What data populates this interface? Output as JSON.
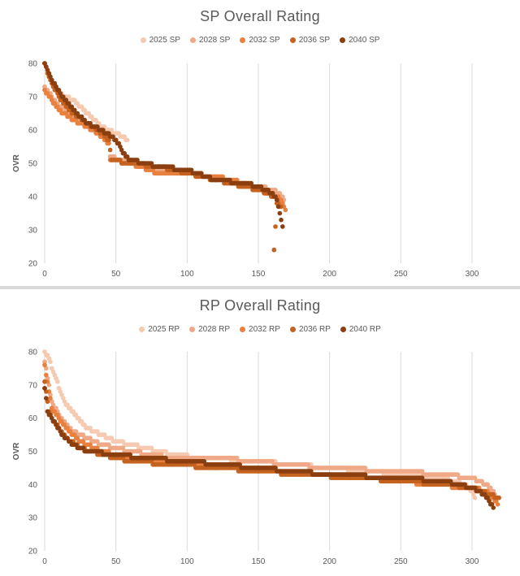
{
  "chart_data": [
    {
      "type": "scatter",
      "title": "SP Overall Rating",
      "xlabel": "",
      "ylabel": "OVR",
      "xlim": [
        0,
        320
      ],
      "ylim": [
        20,
        80
      ],
      "xticks": [
        "0",
        "50",
        "100",
        "150",
        "200",
        "250",
        "300"
      ],
      "yticks": [
        "20",
        "30",
        "40",
        "50",
        "60",
        "70",
        "80"
      ],
      "legend_position": "top",
      "grid": "vertical",
      "series": [
        {
          "name": "2025 SP",
          "color": "#f6c9b1",
          "n": 58,
          "points": [
            [
              0,
              80
            ],
            [
              5,
              74
            ],
            [
              10,
              71
            ],
            [
              15,
              70
            ],
            [
              20,
              69
            ],
            [
              25,
              67
            ],
            [
              30,
              65
            ],
            [
              35,
              63
            ],
            [
              40,
              61
            ],
            [
              45,
              60
            ],
            [
              50,
              59
            ],
            [
              55,
              58
            ],
            [
              58,
              57
            ]
          ]
        },
        {
          "name": "2028 SP",
          "color": "#f0a987",
          "n": 168,
          "points": [
            [
              0,
              73
            ],
            [
              5,
              70
            ],
            [
              10,
              67
            ],
            [
              15,
              66
            ],
            [
              20,
              64
            ],
            [
              30,
              62
            ],
            [
              40,
              60
            ],
            [
              45,
              57
            ],
            [
              46,
              52
            ],
            [
              60,
              50
            ],
            [
              80,
              48
            ],
            [
              100,
              47
            ],
            [
              120,
              46
            ],
            [
              140,
              44
            ],
            [
              150,
              43
            ],
            [
              160,
              42
            ],
            [
              164,
              41
            ],
            [
              166,
              40
            ],
            [
              168,
              39
            ]
          ]
        },
        {
          "name": "2032 SP",
          "color": "#e8803f",
          "n": 169,
          "points": [
            [
              0,
              72
            ],
            [
              5,
              69
            ],
            [
              10,
              66
            ],
            [
              20,
              63
            ],
            [
              30,
              61
            ],
            [
              40,
              58
            ],
            [
              45,
              56
            ],
            [
              46,
              51
            ],
            [
              60,
              50
            ],
            [
              80,
              47
            ],
            [
              100,
              47
            ],
            [
              120,
              46
            ],
            [
              140,
              44
            ],
            [
              150,
              42
            ],
            [
              158,
              41
            ],
            [
              163,
              40
            ],
            [
              167,
              38
            ],
            [
              169,
              36
            ]
          ]
        },
        {
          "name": "2036 SP",
          "color": "#c5621f",
          "n": 166,
          "points": [
            [
              0,
              80
            ],
            [
              3,
              76
            ],
            [
              6,
              73
            ],
            [
              10,
              70
            ],
            [
              15,
              67
            ],
            [
              20,
              65
            ],
            [
              30,
              62
            ],
            [
              40,
              59
            ],
            [
              45,
              57
            ],
            [
              47,
              51
            ],
            [
              60,
              50
            ],
            [
              80,
              49
            ],
            [
              100,
              47
            ],
            [
              120,
              45
            ],
            [
              140,
              43
            ],
            [
              150,
              42
            ],
            [
              156,
              41
            ],
            [
              160,
              40
            ],
            [
              161,
              24
            ],
            [
              163,
              38
            ],
            [
              166,
              37
            ]
          ]
        },
        {
          "name": "2040 SP",
          "color": "#8b3e0f",
          "n": 167,
          "points": [
            [
              0,
              80
            ],
            [
              3,
              77
            ],
            [
              5,
              75
            ],
            [
              8,
              73
            ],
            [
              12,
              70
            ],
            [
              20,
              66
            ],
            [
              30,
              62
            ],
            [
              40,
              60
            ],
            [
              50,
              57
            ],
            [
              57,
              52
            ],
            [
              60,
              51
            ],
            [
              80,
              49
            ],
            [
              100,
              48
            ],
            [
              120,
              45
            ],
            [
              140,
              44
            ],
            [
              150,
              43
            ],
            [
              160,
              41
            ],
            [
              163,
              39
            ],
            [
              167,
              31
            ]
          ]
        }
      ]
    },
    {
      "type": "scatter",
      "title": "RP Overall Rating",
      "xlabel": "",
      "ylabel": "OVR",
      "xlim": [
        0,
        320
      ],
      "ylim": [
        20,
        80
      ],
      "xticks": [
        "0",
        "50",
        "100",
        "150",
        "200",
        "250",
        "300"
      ],
      "yticks": [
        "20",
        "30",
        "40",
        "50",
        "60",
        "70",
        "80"
      ],
      "legend_position": "top",
      "grid": "vertical",
      "series": [
        {
          "name": "2025 RP",
          "color": "#f6c9b1",
          "n": 302,
          "points": [
            [
              0,
              80
            ],
            [
              3,
              78
            ],
            [
              5,
              75
            ],
            [
              8,
              72
            ],
            [
              10,
              69
            ],
            [
              15,
              64
            ],
            [
              20,
              62
            ],
            [
              25,
              59
            ],
            [
              30,
              57
            ],
            [
              40,
              55
            ],
            [
              50,
              53
            ],
            [
              70,
              51
            ],
            [
              90,
              49
            ],
            [
              110,
              48
            ],
            [
              150,
              47
            ],
            [
              200,
              45
            ],
            [
              250,
              43
            ],
            [
              280,
              42
            ],
            [
              295,
              40
            ],
            [
              300,
              38
            ],
            [
              302,
              36
            ]
          ]
        },
        {
          "name": "2028 RP",
          "color": "#f0a987",
          "n": 317,
          "points": [
            [
              0,
              77
            ],
            [
              2,
              72
            ],
            [
              5,
              65
            ],
            [
              10,
              61
            ],
            [
              15,
              58
            ],
            [
              20,
              56
            ],
            [
              30,
              54
            ],
            [
              40,
              52
            ],
            [
              60,
              50
            ],
            [
              90,
              48
            ],
            [
              120,
              48
            ],
            [
              150,
              47
            ],
            [
              170,
              46
            ],
            [
              200,
              45
            ],
            [
              250,
              44
            ],
            [
              280,
              43
            ],
            [
              300,
              42
            ],
            [
              310,
              40
            ],
            [
              315,
              38
            ],
            [
              317,
              36
            ]
          ]
        },
        {
          "name": "2032 RP",
          "color": "#e8803f",
          "n": 318,
          "points": [
            [
              0,
              76
            ],
            [
              3,
              68
            ],
            [
              5,
              63
            ],
            [
              10,
              60
            ],
            [
              15,
              57
            ],
            [
              25,
              53
            ],
            [
              40,
              50
            ],
            [
              60,
              48
            ],
            [
              90,
              47
            ],
            [
              120,
              46
            ],
            [
              150,
              45
            ],
            [
              200,
              43
            ],
            [
              250,
              41
            ],
            [
              270,
              40
            ],
            [
              300,
              39
            ],
            [
              310,
              38
            ],
            [
              315,
              36
            ],
            [
              318,
              34
            ]
          ]
        },
        {
          "name": "2036 RP",
          "color": "#c5621f",
          "n": 319,
          "points": [
            [
              0,
              71
            ],
            [
              3,
              62
            ],
            [
              6,
              59
            ],
            [
              10,
              57
            ],
            [
              15,
              54
            ],
            [
              25,
              51
            ],
            [
              40,
              49
            ],
            [
              60,
              47
            ],
            [
              90,
              46
            ],
            [
              120,
              45
            ],
            [
              150,
              44
            ],
            [
              180,
              43
            ],
            [
              220,
              42
            ],
            [
              250,
              41
            ],
            [
              280,
              40
            ],
            [
              300,
              39
            ],
            [
              312,
              37
            ],
            [
              319,
              36
            ]
          ]
        },
        {
          "name": "2040 RP",
          "color": "#8b3e0f",
          "n": 315,
          "points": [
            [
              0,
              69
            ],
            [
              2,
              62
            ],
            [
              5,
              60
            ],
            [
              8,
              58
            ],
            [
              12,
              55
            ],
            [
              20,
              52
            ],
            [
              30,
              50
            ],
            [
              50,
              49
            ],
            [
              70,
              48
            ],
            [
              100,
              47
            ],
            [
              150,
              45
            ],
            [
              200,
              43
            ],
            [
              250,
              42
            ],
            [
              280,
              41
            ],
            [
              300,
              39
            ],
            [
              308,
              37
            ],
            [
              312,
              35
            ],
            [
              315,
              33
            ]
          ]
        }
      ]
    }
  ]
}
